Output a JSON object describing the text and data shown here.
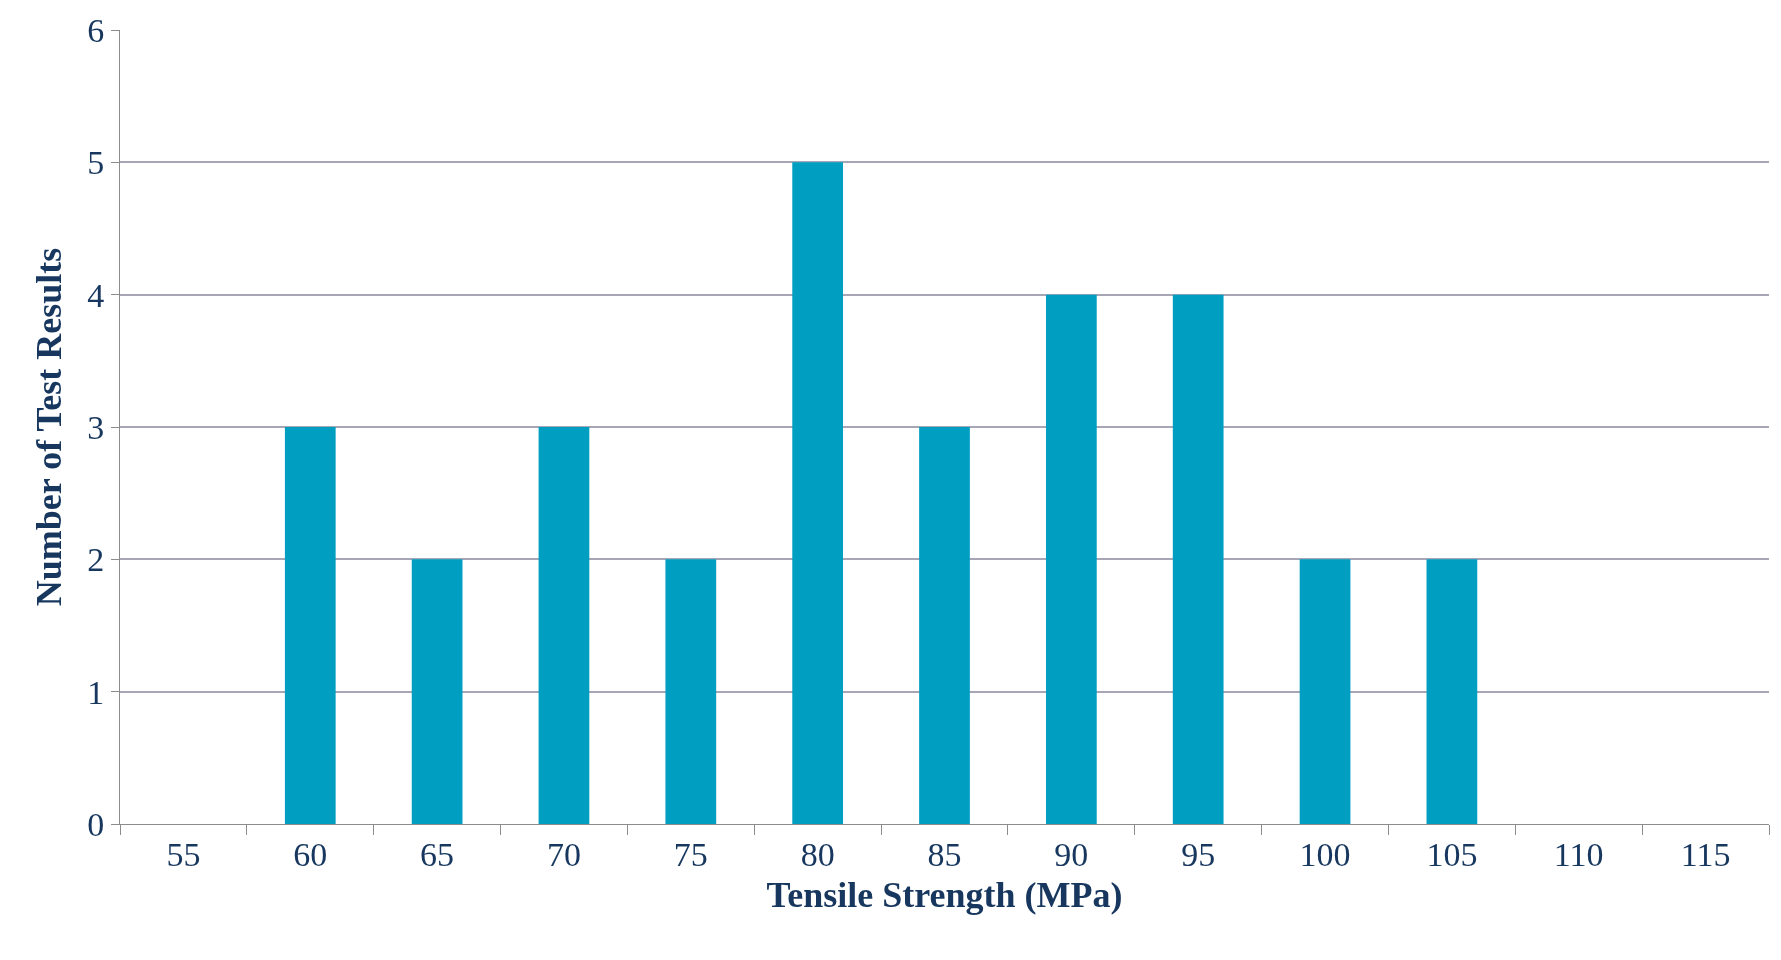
{
  "chart_data": {
    "type": "bar",
    "xlabel": "Tensile Strength (MPa)",
    "ylabel": "Number of Test Results",
    "categories": [
      "55",
      "60",
      "65",
      "70",
      "75",
      "80",
      "85",
      "90",
      "95",
      "100",
      "105",
      "110",
      "115"
    ],
    "values": [
      0,
      3,
      2,
      3,
      2,
      5,
      3,
      4,
      4,
      2,
      2,
      0,
      0
    ],
    "color": "#009fc2",
    "ylim": [
      0,
      6
    ],
    "yticks": [
      0,
      1,
      2,
      3,
      4,
      5,
      6
    ],
    "grid": "y"
  }
}
